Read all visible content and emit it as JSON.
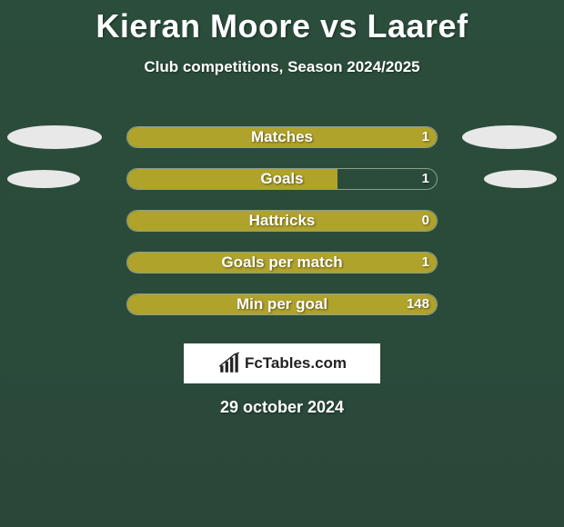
{
  "title": "Kieran Moore vs Laaref",
  "subtitle": "Club competitions, Season 2024/2025",
  "date": "29 october 2024",
  "logo_text": "FcTables.com",
  "colors": {
    "background": "#2a4a3a",
    "bar_fill": "#b0a32c",
    "bar_border": "#8aa08a",
    "ellipse": "#e8e8e8",
    "text": "#ffffff",
    "logo_bg": "#ffffff",
    "logo_text": "#222222"
  },
  "ellipse_style": {
    "width_large": 104,
    "height_large": 26,
    "width_small": 80,
    "height_small": 20
  },
  "stats": [
    {
      "label": "Matches",
      "value": "1",
      "fill_pct": 100,
      "ellipses": "large"
    },
    {
      "label": "Goals",
      "value": "1",
      "fill_pct": 68,
      "ellipses": "small"
    },
    {
      "label": "Hattricks",
      "value": "0",
      "fill_pct": 100,
      "ellipses": "none"
    },
    {
      "label": "Goals per match",
      "value": "1",
      "fill_pct": 100,
      "ellipses": "none"
    },
    {
      "label": "Min per goal",
      "value": "148",
      "fill_pct": 100,
      "ellipses": "none"
    }
  ],
  "chart_meta": {
    "type": "infographic",
    "bar_wrap_width": 342,
    "bar_wrap_height": 24,
    "bar_border_radius": 13,
    "title_fontsize": 36,
    "subtitle_fontsize": 17,
    "label_fontsize": 17,
    "value_fontsize": 15,
    "date_fontsize": 18
  }
}
